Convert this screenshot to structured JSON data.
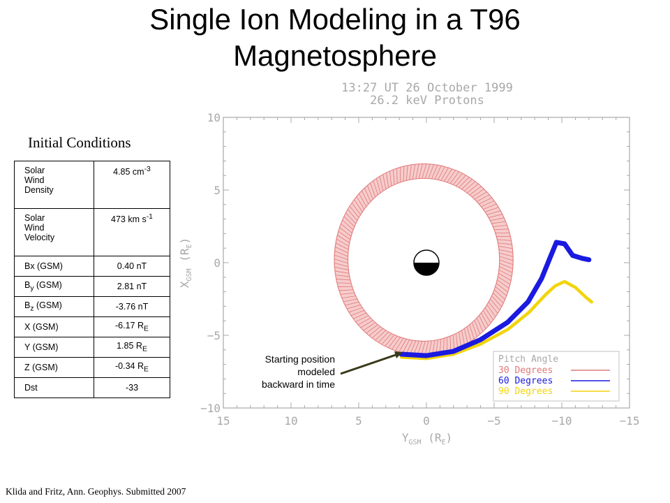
{
  "slide": {
    "title_line1": "Single Ion Modeling in a T96",
    "title_line2": "Magnetosphere",
    "footer": "Klida and Fritz, Ann. Geophys. Submitted 2007"
  },
  "conditions": {
    "heading": "Initial Conditions",
    "rows": [
      {
        "l1": "Solar",
        "l2": "Wind",
        "l3": "Density",
        "v": "4.85 cm",
        "vsup": "-3"
      },
      {
        "l1": "Solar",
        "l2": "Wind",
        "l3": "Velocity",
        "v": "473 km s",
        "vsup": "-1"
      },
      {
        "l": "Bx (GSM)",
        "v": "0.40 nT"
      },
      {
        "lmain": "B",
        "lsub": "y",
        "lrest": " (GSM)",
        "v": "2.81 nT"
      },
      {
        "lmain": "B",
        "lsub": "z",
        "lrest": " (GSM)",
        "v": "-3.76 nT"
      },
      {
        "l": "X (GSM)",
        "vmain": "-6.17 R",
        "vsub": "E"
      },
      {
        "l": "Y (GSM)",
        "vmain": "1.85 R",
        "vsub": "E"
      },
      {
        "l": "Z (GSM)",
        "vmain": "-0.34 R",
        "vsub": "E"
      },
      {
        "l": "Dst",
        "v": "-33"
      }
    ]
  },
  "annotation": {
    "line1": "Starting position",
    "line2": "modeled",
    "line3": "backward in time"
  },
  "chart_data": {
    "type": "line",
    "title_line1": "13:27 UT 26 October 1999",
    "title_line2": "26.2 keV Protons",
    "xlabel_main": "Y",
    "xlabel_sub": "GSM",
    "xlabel_rest": " (R",
    "xlabel_unit_sub": "E",
    "xlabel_close": ")",
    "ylabel_main": "X",
    "ylabel_sub": "GSM",
    "ylabel_rest": " (R",
    "ylabel_unit_sub": "E",
    "ylabel_close": ")",
    "xlim": [
      15,
      -15
    ],
    "ylim": [
      -10,
      10
    ],
    "x_ticks": [
      15,
      10,
      5,
      0,
      -5,
      -10,
      -15
    ],
    "x_tick_labels": [
      "15",
      "10",
      "5",
      "0",
      "−5",
      "−10",
      "−15"
    ],
    "y_ticks": [
      10,
      5,
      0,
      -5,
      -10
    ],
    "y_tick_labels": [
      "10",
      "5",
      "0",
      "−5",
      "−10"
    ],
    "legend_title": "Pitch Angle",
    "legend_position": "bottom-right",
    "colors": {
      "axis": "#a8a8a8",
      "red": "#e07878",
      "blue": "#1a1ae0",
      "yellow": "#f2d40a"
    },
    "series": [
      {
        "name": "30 Degrees",
        "color": "#e07878",
        "ring": {
          "cx": 0.2,
          "cy": 0.2,
          "r_outer": 6.6,
          "r_inner": 5.6
        }
      },
      {
        "name": "60 Degrees",
        "color": "#1a1ae0",
        "points": [
          [
            1.85,
            -6.3
          ],
          [
            0,
            -6.4
          ],
          [
            -2,
            -6.1
          ],
          [
            -4,
            -5.3
          ],
          [
            -6,
            -4.1
          ],
          [
            -7.5,
            -2.7
          ],
          [
            -8.5,
            -1.1
          ],
          [
            -9.2,
            0.5
          ],
          [
            -9.6,
            1.4
          ],
          [
            -10.2,
            1.3
          ],
          [
            -10.8,
            0.5
          ],
          [
            -11.5,
            0.3
          ],
          [
            -12.0,
            0.2
          ]
        ]
      },
      {
        "name": "90 Degrees",
        "color": "#f2d40a",
        "points": [
          [
            1.85,
            -6.5
          ],
          [
            0,
            -6.6
          ],
          [
            -2,
            -6.3
          ],
          [
            -4,
            -5.6
          ],
          [
            -6,
            -4.6
          ],
          [
            -7.6,
            -3.4
          ],
          [
            -8.8,
            -2.2
          ],
          [
            -9.5,
            -1.6
          ],
          [
            -10.2,
            -1.3
          ],
          [
            -11.0,
            -1.7
          ],
          [
            -11.8,
            -2.4
          ],
          [
            -12.2,
            -2.7
          ]
        ]
      }
    ],
    "earth": {
      "x": 0,
      "y": 0
    }
  }
}
